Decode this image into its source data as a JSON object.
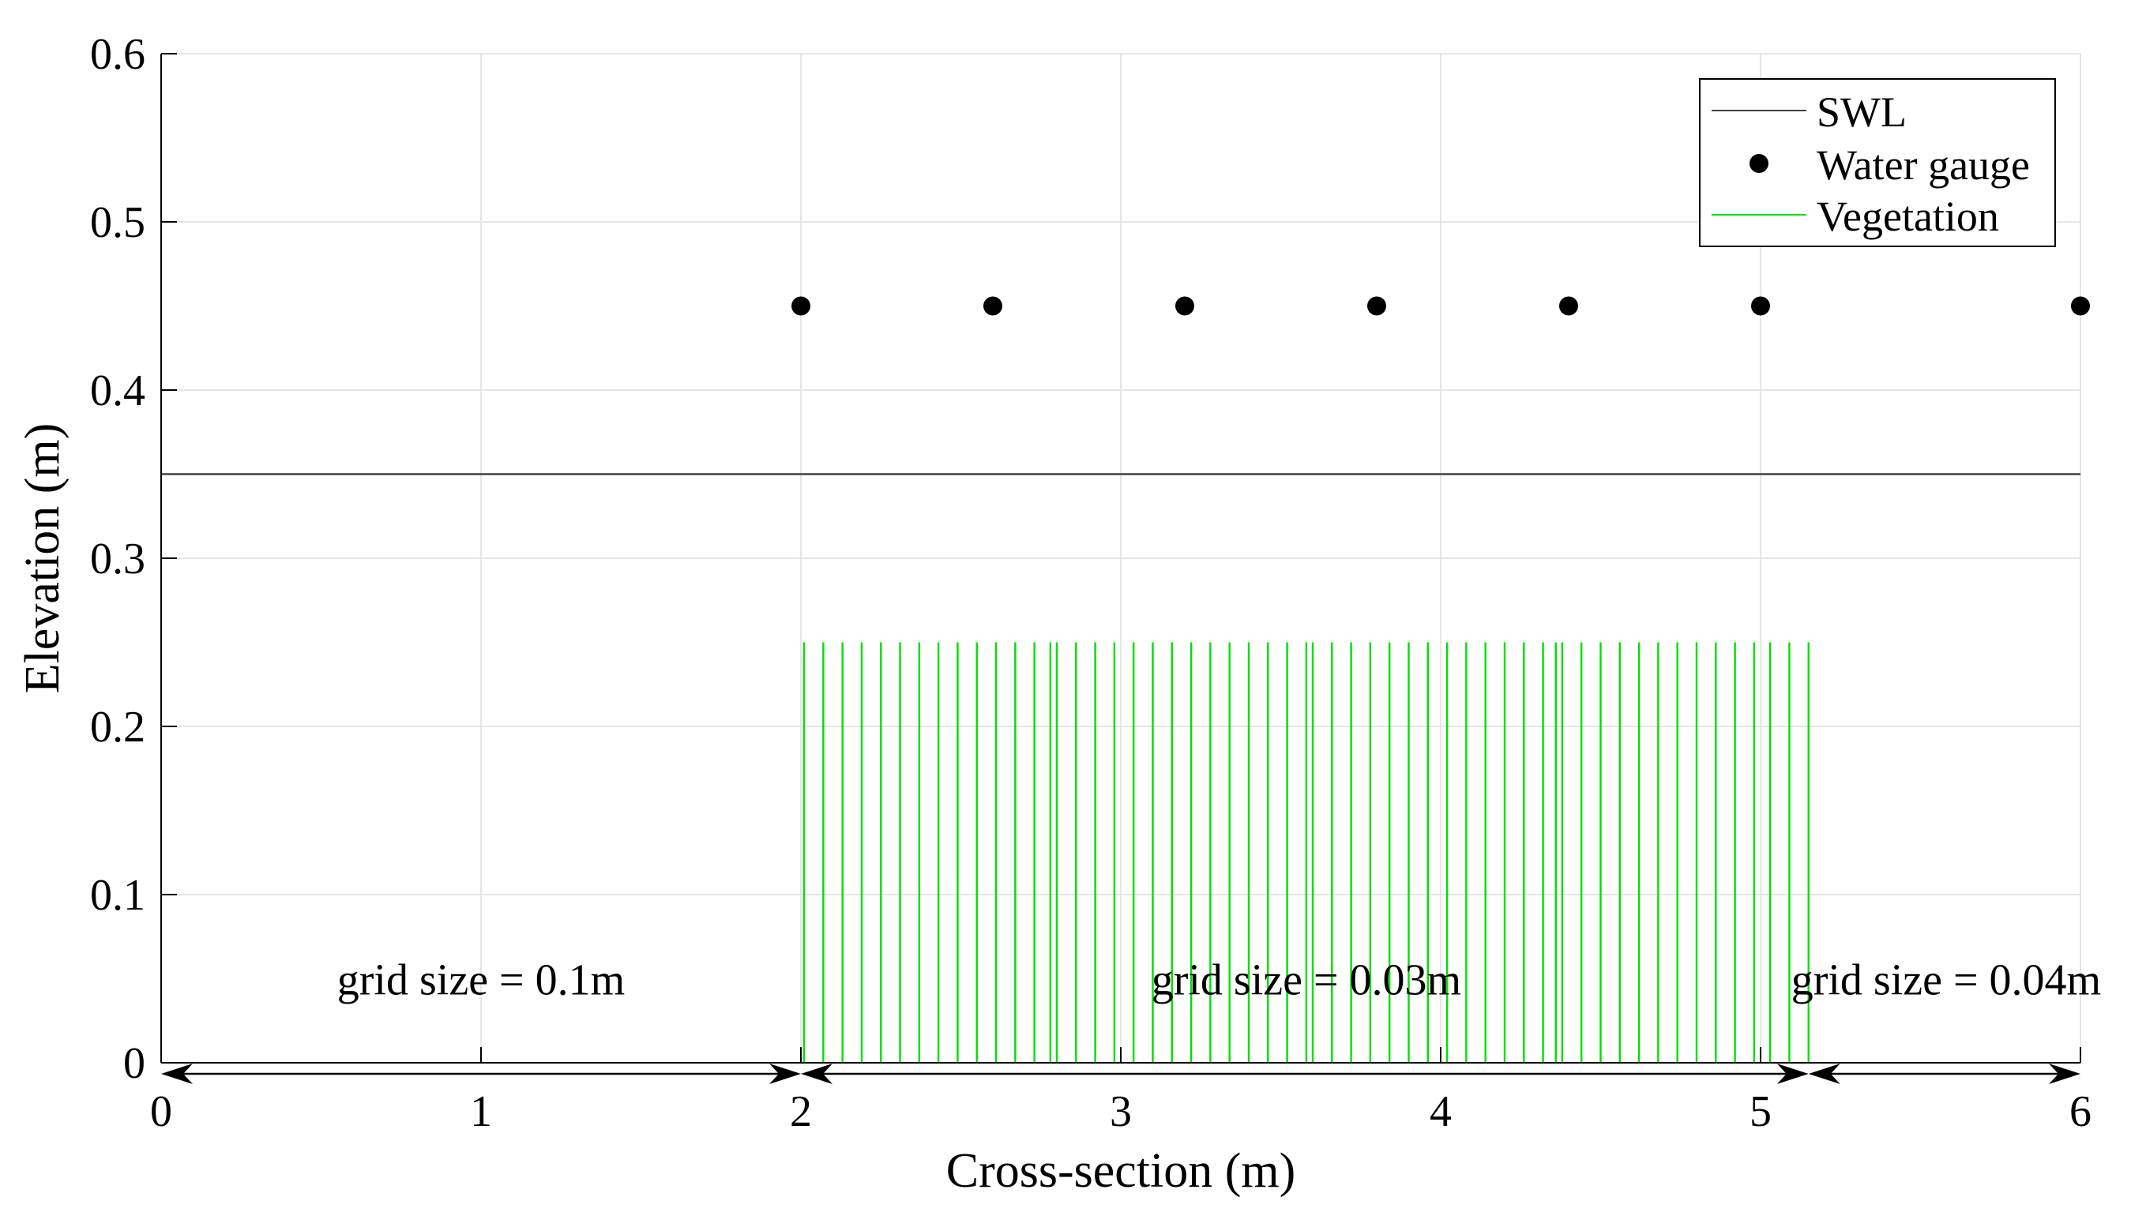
{
  "chart_data": {
    "type": "line",
    "title": "",
    "xlabel": "Cross-section (m)",
    "ylabel": "Elevation (m)",
    "xlim": [
      0,
      6
    ],
    "ylim": [
      0,
      0.6
    ],
    "x_ticks": [
      0,
      1,
      2,
      3,
      4,
      5,
      6
    ],
    "x_tick_labels": [
      "0",
      "1",
      "2",
      "3",
      "4",
      "5",
      "6"
    ],
    "y_ticks": [
      0,
      0.1,
      0.2,
      0.3,
      0.4,
      0.5,
      0.6
    ],
    "y_tick_labels": [
      "0",
      "0.1",
      "0.2",
      "0.3",
      "0.4",
      "0.5",
      "0.6"
    ],
    "grid": true,
    "legend_position": "top-right",
    "legend": [
      "SWL",
      "Water gauge",
      "Vegetation"
    ],
    "colors": {
      "swl": "#404040",
      "gauge": "#000000",
      "vegetation": "#00e000",
      "grid": "#e6e6e6",
      "axis": "#000000"
    },
    "series": [
      {
        "name": "SWL",
        "kind": "line",
        "x": [
          0,
          6
        ],
        "y": [
          0.35,
          0.35
        ]
      },
      {
        "name": "Water gauge",
        "kind": "scatter",
        "x": [
          2.0,
          2.6,
          3.2,
          3.8,
          4.4,
          5.0,
          6.0
        ],
        "y": [
          0.45,
          0.45,
          0.45,
          0.45,
          0.45,
          0.45,
          0.45
        ]
      },
      {
        "name": "Vegetation",
        "kind": "stems",
        "height": 0.25,
        "x": [
          2.01,
          2.07,
          2.13,
          2.19,
          2.25,
          2.31,
          2.37,
          2.43,
          2.49,
          2.55,
          2.61,
          2.67,
          2.73,
          2.78,
          2.8,
          2.86,
          2.92,
          2.98,
          3.04,
          3.1,
          3.16,
          3.22,
          3.28,
          3.34,
          3.4,
          3.46,
          3.52,
          3.58,
          3.6,
          3.66,
          3.72,
          3.78,
          3.84,
          3.9,
          3.96,
          4.02,
          4.08,
          4.14,
          4.2,
          4.26,
          4.32,
          4.36,
          4.38,
          4.44,
          4.5,
          4.56,
          4.62,
          4.68,
          4.74,
          4.8,
          4.86,
          4.92,
          4.98,
          5.03,
          5.09,
          5.15
        ]
      }
    ],
    "annotations": [
      {
        "text": "grid size = 0.1m",
        "x": 1.0,
        "y": 0.05,
        "region": [
          0,
          2
        ]
      },
      {
        "text": "grid size = 0.03m",
        "x": 3.58,
        "y": 0.05,
        "region": [
          2,
          5.15
        ]
      },
      {
        "text": "grid size = 0.04m",
        "x": 5.58,
        "y": 0.05,
        "region": [
          5.15,
          6
        ]
      }
    ]
  }
}
